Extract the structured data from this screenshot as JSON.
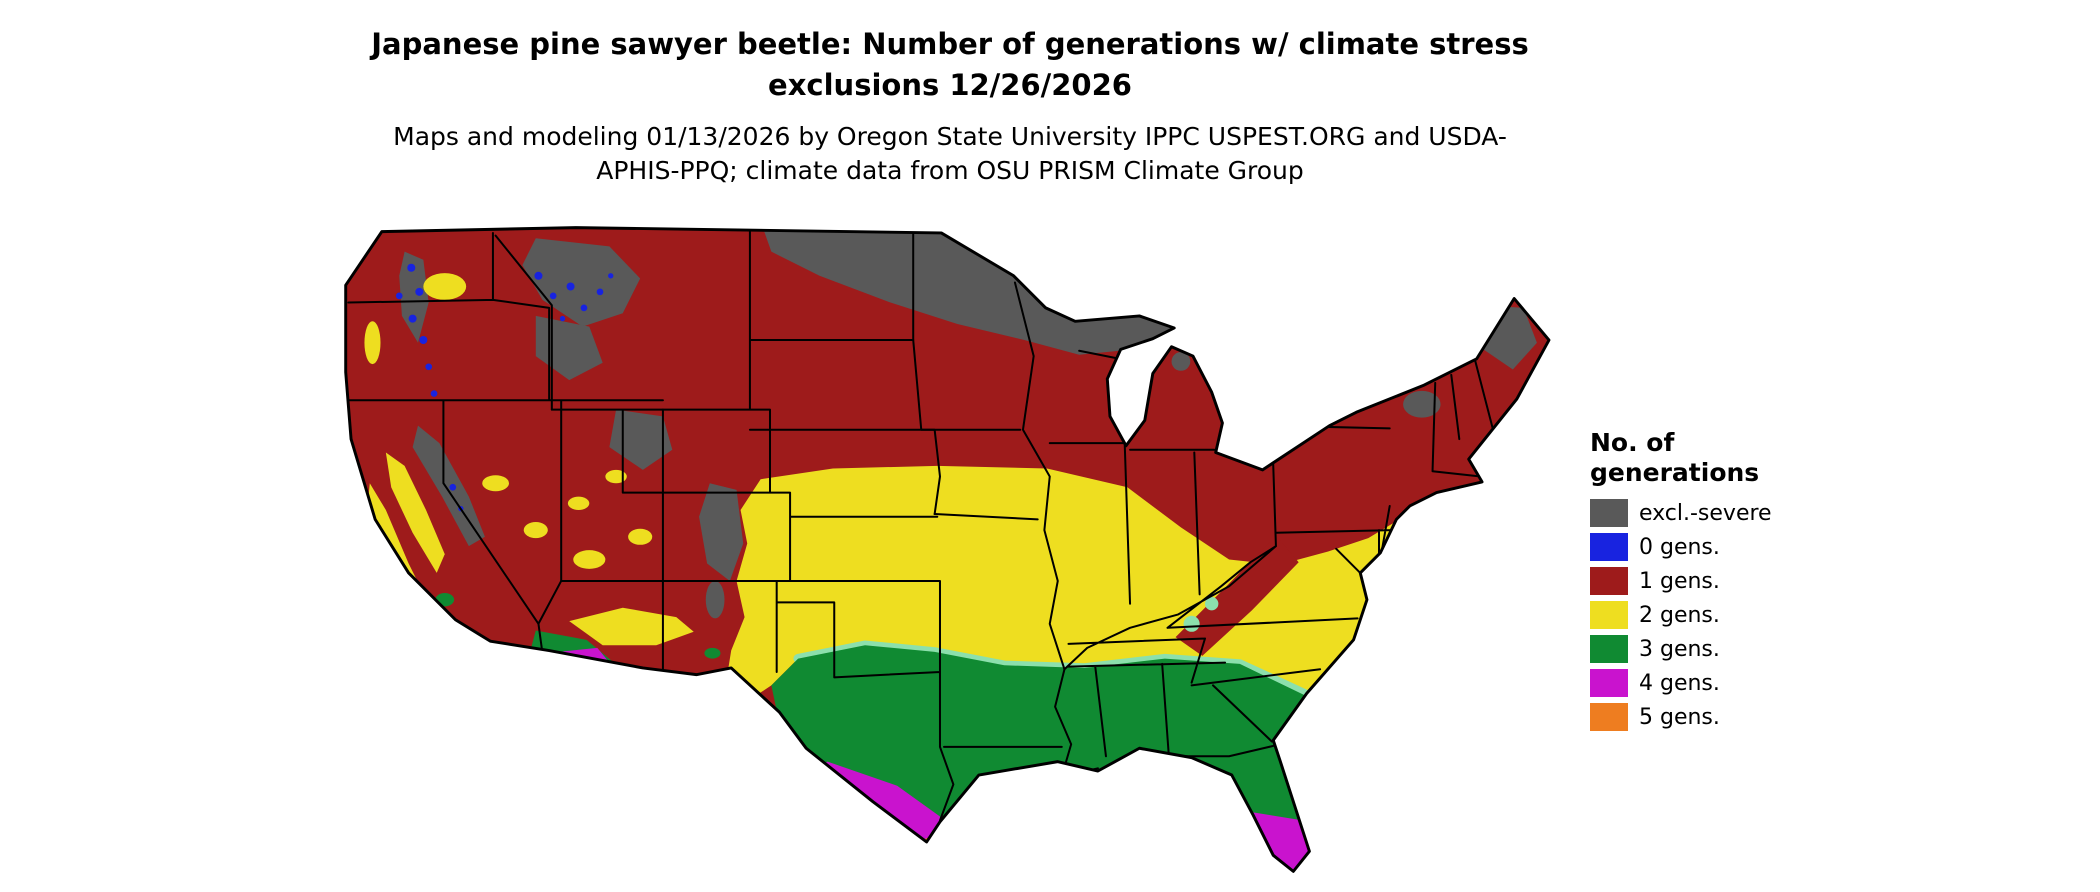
{
  "title": "Japanese pine sawyer beetle: Number of generations w/ climate stress exclusions 12/26/2026",
  "subtitle": "Maps and modeling 01/13/2026 by Oregon State University IPPC USPEST.ORG and USDA-APHIS-PPQ; climate data from OSU PRISM Climate Group",
  "legend": {
    "title": "No. of generations",
    "entries": [
      {
        "key": "excl",
        "label": "excl.-severe",
        "color": "#595959"
      },
      {
        "key": "gen0",
        "label": "0 gens.",
        "color": "#1823e0"
      },
      {
        "key": "gen1",
        "label": "1 gens.",
        "color": "#9e1b1b"
      },
      {
        "key": "gen2",
        "label": "2 gens.",
        "color": "#eede20"
      },
      {
        "key": "gen3",
        "label": "3 gens.",
        "color": "#108a32"
      },
      {
        "key": "gen4",
        "label": "4 gens.",
        "color": "#c913ce"
      },
      {
        "key": "gen5",
        "label": "5 gens.",
        "color": "#ee7d20"
      }
    ]
  },
  "palette": {
    "excl": "#595959",
    "gen0": "#1823e0",
    "gen1": "#9e1b1b",
    "gen2": "#eede20",
    "gen3": "#108a32",
    "gen4": "#c913ce",
    "gen5": "#ee7d20",
    "mint": "#8ce0ac",
    "border": "#000000",
    "background": "#ffffff"
  }
}
